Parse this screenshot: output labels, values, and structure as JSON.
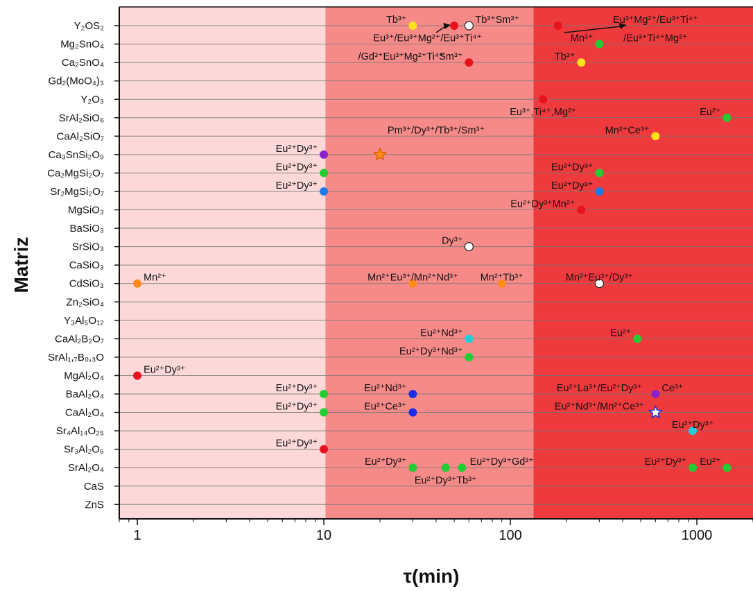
{
  "chart_data": {
    "type": "scatter",
    "xlabel": "τ(min)",
    "ylabel": "Matriz",
    "x_scale": "log",
    "xlim": [
      0.8,
      2000
    ],
    "x_ticks": [
      1,
      10,
      100,
      1000
    ],
    "x_tick_labels": [
      "1",
      "10",
      "100",
      "1000"
    ],
    "grid": "horizontal",
    "region_colors": [
      "#fdd8d8",
      "#f68a88",
      "#ee3a3d"
    ],
    "region_breaks": [
      0.8,
      10.2,
      133,
      2000
    ],
    "categories": [
      "Y₂OS₂",
      "Mg₂SnO₄",
      "Ca₂SnO₄",
      "Gd₂(MoO₄)₃",
      "Y₂O₃",
      "SrAl₂SiO₆",
      "CaAl₂SiO₇",
      "Ca₃SnSi₂O₉",
      "Ca₂MgSi₂O₇",
      "Sr₂MgSi₂O₇",
      "MgSiO₃",
      "BaSiO₃",
      "SrSiO₃",
      "CaSiO₃",
      "CdSiO₃",
      "Zn₂SiO₄",
      "Y₃Al₅O₁₂",
      "CaAl₂B₂O₇",
      "SrAl₁,₇B₀,₃O",
      "MgAl₂O₄",
      "BaAl₂O₄",
      "CaAl₂O₄",
      "Sr₄Al₁₄O₂₅",
      "Sr₃Al₂O₆",
      "SrAl₂O₄",
      "CaS",
      "ZnS"
    ],
    "points": [
      {
        "matrix": "Y₂OS₂",
        "x": 30,
        "color": "#ffe01a",
        "marker": "circle"
      },
      {
        "matrix": "Y₂OS₂",
        "x": 50,
        "color": "#e8121c",
        "marker": "circle"
      },
      {
        "matrix": "Y₂OS₂",
        "x": 60,
        "color": "#ffffff",
        "marker": "circle"
      },
      {
        "matrix": "Y₂OS₂",
        "x": 180,
        "color": "#e8121c",
        "marker": "circle"
      },
      {
        "matrix": "Mg₂SnO₄",
        "x": 300,
        "color": "#22cc33",
        "marker": "circle"
      },
      {
        "matrix": "Ca₂SnO₄",
        "x": 60,
        "color": "#e8121c",
        "marker": "circle"
      },
      {
        "matrix": "Ca₂SnO₄",
        "x": 240,
        "color": "#ffe01a",
        "marker": "circle"
      },
      {
        "matrix": "Y₂O₃",
        "x": 150,
        "color": "#e8121c",
        "marker": "circle"
      },
      {
        "matrix": "SrAl₂SiO₆",
        "x": 1450,
        "color": "#22cc33",
        "marker": "circle"
      },
      {
        "matrix": "CaAl₂SiO₇",
        "x": 600,
        "color": "#ffe01a",
        "marker": "circle"
      },
      {
        "matrix": "Ca₃SnSi₂O₉",
        "x": 10,
        "color": "#8a22cc",
        "marker": "circle"
      },
      {
        "matrix": "Ca₃SnSi₂O₉",
        "x": 20,
        "color": "#ff8c1a",
        "marker": "star"
      },
      {
        "matrix": "Ca₂MgSi₂O₇",
        "x": 10,
        "color": "#22cc33",
        "marker": "circle"
      },
      {
        "matrix": "Ca₂MgSi₂O₇",
        "x": 300,
        "color": "#22cc33",
        "marker": "circle"
      },
      {
        "matrix": "Sr₂MgSi₂O₇",
        "x": 10,
        "color": "#1a7be8",
        "marker": "circle"
      },
      {
        "matrix": "Sr₂MgSi₂O₇",
        "x": 300,
        "color": "#1a7be8",
        "marker": "circle"
      },
      {
        "matrix": "MgSiO₃",
        "x": 240,
        "color": "#e8121c",
        "marker": "circle"
      },
      {
        "matrix": "SrSiO₃",
        "x": 60,
        "color": "#ffffff",
        "marker": "circle"
      },
      {
        "matrix": "CdSiO₃",
        "x": 1,
        "color": "#ff8c1a",
        "marker": "circle"
      },
      {
        "matrix": "CdSiO₃",
        "x": 30,
        "color": "#ff8c1a",
        "marker": "circle"
      },
      {
        "matrix": "CdSiO₃",
        "x": 90,
        "color": "#ff8c1a",
        "marker": "circle"
      },
      {
        "matrix": "CdSiO₃",
        "x": 300,
        "color": "#ffffff",
        "marker": "circle"
      },
      {
        "matrix": "CaAl₂B₂O₇",
        "x": 60,
        "color": "#22ccdd",
        "marker": "circle"
      },
      {
        "matrix": "CaAl₂B₂O₇",
        "x": 480,
        "color": "#22cc33",
        "marker": "circle"
      },
      {
        "matrix": "SrAl₁,₇B₀,₃O",
        "x": 60,
        "color": "#22cc33",
        "marker": "circle"
      },
      {
        "matrix": "MgAl₂O₄",
        "x": 1,
        "color": "#e8121c",
        "marker": "circle"
      },
      {
        "matrix": "BaAl₂O₄",
        "x": 10,
        "color": "#22cc33",
        "marker": "circle"
      },
      {
        "matrix": "BaAl₂O₄",
        "x": 30,
        "color": "#1a2ee8",
        "marker": "circle"
      },
      {
        "matrix": "BaAl₂O₄",
        "x": 600,
        "color": "#8a22cc",
        "marker": "circle"
      },
      {
        "matrix": "CaAl₂O₄",
        "x": 10,
        "color": "#22cc33",
        "marker": "circle"
      },
      {
        "matrix": "CaAl₂O₄",
        "x": 30,
        "color": "#1a2ee8",
        "marker": "circle"
      },
      {
        "matrix": "CaAl₂O₄",
        "x": 600,
        "color": "#ffffff",
        "marker": "star"
      },
      {
        "matrix": "Sr₄Al₁₄O₂₅",
        "x": 950,
        "color": "#22ccdd",
        "marker": "circle"
      },
      {
        "matrix": "Sr₃Al₂O₆",
        "x": 10,
        "color": "#e8121c",
        "marker": "circle"
      },
      {
        "matrix": "SrAl₂O₄",
        "x": 30,
        "color": "#22cc33",
        "marker": "circle"
      },
      {
        "matrix": "SrAl₂O₄",
        "x": 45,
        "color": "#22cc33",
        "marker": "circle"
      },
      {
        "matrix": "SrAl₂O₄",
        "x": 55,
        "color": "#22cc33",
        "marker": "circle"
      },
      {
        "matrix": "SrAl₂O₄",
        "x": 950,
        "color": "#22cc33",
        "marker": "circle"
      },
      {
        "matrix": "SrAl₂O₄",
        "x": 1450,
        "color": "#22cc33",
        "marker": "circle"
      }
    ],
    "annotations": [
      {
        "text": "Tb³⁺",
        "x": 30,
        "matrix": "Y₂OS₂",
        "anchor": "end"
      },
      {
        "text": "Tb³⁺Sm³⁺",
        "x": 60,
        "matrix": "Y₂OS₂",
        "anchor": "start"
      },
      {
        "text": "Eu³⁺/Eu³⁺Mg²⁺/Eu³⁺Ti⁴⁺",
        "x": 36,
        "matrix": "Mg₂SnO₄",
        "anchor": "middle"
      },
      {
        "text": "/Gd³⁺Eu³⁺Mg²⁺Ti⁴⁺",
        "x": 26,
        "matrix": "Ca₂SnO₄",
        "anchor": "middle"
      },
      {
        "text": "Eu³⁺Mg²⁺/Eu³⁺Ti⁴⁺",
        "x": 600,
        "matrix": "Y₂OS₂",
        "anchor": "middle"
      },
      {
        "text": "/Eu³⁺Ti⁴⁺Mg²⁺",
        "x": 600,
        "matrix": "Mg₂SnO₄",
        "anchor": "middle"
      },
      {
        "text": "Mn²⁺",
        "x": 300,
        "matrix": "Mg₂SnO₄",
        "anchor": "end"
      },
      {
        "text": "Sm³⁺",
        "x": 60,
        "matrix": "Ca₂SnO₄",
        "anchor": "end"
      },
      {
        "text": "Tb³⁺",
        "x": 240,
        "matrix": "Ca₂SnO₄",
        "anchor": "end"
      },
      {
        "text": "Eu³⁺,Ti⁴⁺,Mg²⁺",
        "x": 150,
        "matrix": "SrAl₂SiO₆",
        "anchor": "middle"
      },
      {
        "text": "Eu²⁺",
        "x": 1450,
        "matrix": "SrAl₂SiO₆",
        "anchor": "end"
      },
      {
        "text": "Mn²⁺Ce³⁺",
        "x": 600,
        "matrix": "CaAl₂SiO₇",
        "anchor": "end"
      },
      {
        "text": "Pm³⁺/Dy³⁺/Tb³⁺/Sm³⁺",
        "x": 40,
        "matrix": "CaAl₂SiO₇",
        "anchor": "middle"
      },
      {
        "text": "Eu²⁺Dy³⁺",
        "x": 10,
        "matrix": "Ca₃SnSi₂O₉",
        "anchor": "end"
      },
      {
        "text": "Eu²⁺Dy³⁺",
        "x": 10,
        "matrix": "Ca₂MgSi₂O₇",
        "anchor": "end"
      },
      {
        "text": "Eu²⁺Dy³⁺",
        "x": 300,
        "matrix": "Ca₂MgSi₂O₇",
        "anchor": "end"
      },
      {
        "text": "Eu²⁺Dy³⁺",
        "x": 10,
        "matrix": "Sr₂MgSi₂O₇",
        "anchor": "end"
      },
      {
        "text": "Eu²⁺Dy³⁺",
        "x": 300,
        "matrix": "Sr₂MgSi₂O₇",
        "anchor": "end"
      },
      {
        "text": "Eu²⁺Dy³⁺Mn²⁺",
        "x": 240,
        "matrix": "MgSiO₃",
        "anchor": "end"
      },
      {
        "text": "Dy³⁺",
        "x": 60,
        "matrix": "SrSiO₃",
        "anchor": "end"
      },
      {
        "text": "Mn²⁺",
        "x": 1,
        "matrix": "CdSiO₃",
        "anchor": "start"
      },
      {
        "text": "Mn²⁺Eu³⁺/Mn²⁺Nd³⁺",
        "x": 30,
        "matrix": "CdSiO₃",
        "anchor": "middle"
      },
      {
        "text": "Mn²⁺Tb³⁺",
        "x": 90,
        "matrix": "CdSiO₃",
        "anchor": "middle"
      },
      {
        "text": "Mn²⁺Eu³⁺/Dy³⁺",
        "x": 300,
        "matrix": "CdSiO₃",
        "anchor": "middle"
      },
      {
        "text": "Eu²⁺Nd³⁺",
        "x": 60,
        "matrix": "CaAl₂B₂O₇",
        "anchor": "end"
      },
      {
        "text": "Eu²⁺",
        "x": 480,
        "matrix": "CaAl₂B₂O₇",
        "anchor": "end"
      },
      {
        "text": "Eu²⁺Dy³⁺Nd³⁺",
        "x": 60,
        "matrix": "SrAl₁,₇B₀,₃O",
        "anchor": "end"
      },
      {
        "text": "Eu²⁺Dy³⁺",
        "x": 1,
        "matrix": "MgAl₂O₄",
        "anchor": "start"
      },
      {
        "text": "Eu²⁺Dy³⁺",
        "x": 10,
        "matrix": "BaAl₂O₄",
        "anchor": "end"
      },
      {
        "text": "Eu²⁺Nd³⁺",
        "x": 30,
        "matrix": "BaAl₂O₄",
        "anchor": "end"
      },
      {
        "text": "Eu²⁺La³⁺/Eu²⁺Dy³⁺",
        "x": 300,
        "matrix": "BaAl₂O₄",
        "anchor": "middle"
      },
      {
        "text": "Ce³⁺",
        "x": 600,
        "matrix": "BaAl₂O₄",
        "anchor": "start"
      },
      {
        "text": "Eu²⁺Dy³⁺",
        "x": 10,
        "matrix": "CaAl₂O₄",
        "anchor": "end"
      },
      {
        "text": "Eu²⁺Ce³⁺",
        "x": 30,
        "matrix": "CaAl₂O₄",
        "anchor": "end"
      },
      {
        "text": "Eu²⁺Nd³⁺/Mn²⁺Ce³⁺",
        "x": 300,
        "matrix": "CaAl₂O₄",
        "anchor": "middle"
      },
      {
        "text": "Eu²⁺Dy³⁺",
        "x": 950,
        "matrix": "Sr₄Al₁₄O₂₅",
        "anchor": "middle"
      },
      {
        "text": "Eu²⁺Dy³⁺",
        "x": 10,
        "matrix": "Sr₃Al₂O₆",
        "anchor": "end"
      },
      {
        "text": "Eu²⁺Dy³⁺",
        "x": 30,
        "matrix": "SrAl₂O₄",
        "anchor": "end"
      },
      {
        "text": "Eu²⁺Dy³⁺Gd³⁺",
        "x": 90,
        "matrix": "SrAl₂O₄",
        "anchor": "middle"
      },
      {
        "text": "Eu²⁺Dy³⁺Tb³⁺",
        "x": 45,
        "matrix": "CaS",
        "anchor": "middle"
      },
      {
        "text": "Eu²⁺Dy³⁺",
        "x": 950,
        "matrix": "SrAl₂O₄",
        "anchor": "end"
      },
      {
        "text": "Eu²⁺",
        "x": 1450,
        "matrix": "SrAl₂O₄",
        "anchor": "end"
      }
    ],
    "arrows": [
      {
        "from_x": 40,
        "to_x": 48,
        "matrix": "Y₂OS₂"
      },
      {
        "from_x": 195,
        "to_x": 420,
        "matrix": "Y₂OS₂"
      }
    ]
  }
}
